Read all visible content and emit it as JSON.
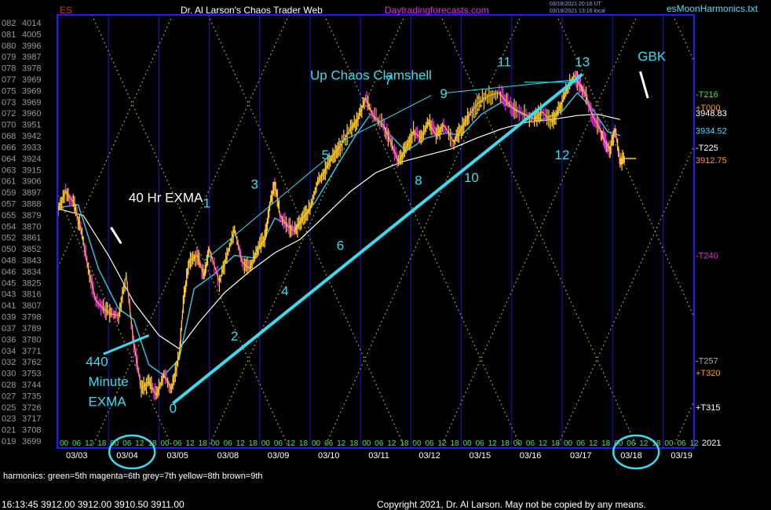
{
  "header": {
    "symbol": "ES",
    "title": "Dr. Al Larson's Chaos Trader Web",
    "site": "Daytradingforecasts.com",
    "ut_stamp": "03/18/2021 20:16 UT",
    "local_stamp": "03/18/2021 13:16 local",
    "filename": "esMoonHarmonics.txt"
  },
  "footer": {
    "harmonics_note": "harmonics: green=5th  magenta=6th grey=7th yellow=8th brown=9th",
    "quote_line": "16:13:45  3912.00 3912.00 3910.50 3911.00",
    "copyright": "Copyright 2021, Dr. Al Larson. May not be copied by any means."
  },
  "colors": {
    "background": "#000000",
    "frame": "#1e1ef0",
    "grid_blue": "#1717c8",
    "harmonic_dots": "#c8c828",
    "price_bars": "#ffc828",
    "low_bars": "#e628e6",
    "fast_ema": "#32c8e6",
    "slow_ema": "#ffffe6",
    "annotation": "#3cdcf0",
    "white": "#ffffff",
    "left_axis": "#9a9a9a",
    "header_red": "#dc2828",
    "header_magenta": "#e628e6",
    "header_cyan": "#50dcff"
  },
  "chart_data": {
    "type": "line",
    "symbol": "ES",
    "y_axis": {
      "ylim": [
        3699,
        4014
      ],
      "tick_labels": [
        {
          "prefix": "082",
          "value": "4014"
        },
        {
          "prefix": "081",
          "value": "4005"
        },
        {
          "prefix": "080",
          "value": "3996"
        },
        {
          "prefix": "079",
          "value": "3987"
        },
        {
          "prefix": "078",
          "value": "3978"
        },
        {
          "prefix": "077",
          "value": "3969"
        },
        {
          "prefix": "075",
          "value": "3969"
        },
        {
          "prefix": "073",
          "value": "3969"
        },
        {
          "prefix": "072",
          "value": "3960"
        },
        {
          "prefix": "070",
          "value": "3951"
        },
        {
          "prefix": "068",
          "value": "3942"
        },
        {
          "prefix": "066",
          "value": "3933"
        },
        {
          "prefix": "064",
          "value": "3924"
        },
        {
          "prefix": "063",
          "value": "3915"
        },
        {
          "prefix": "061",
          "value": "3906"
        },
        {
          "prefix": "059",
          "value": "3897"
        },
        {
          "prefix": "057",
          "value": "3888"
        },
        {
          "prefix": "055",
          "value": "3879"
        },
        {
          "prefix": "054",
          "value": "3870"
        },
        {
          "prefix": "052",
          "value": "3861"
        },
        {
          "prefix": "050",
          "value": "3852"
        },
        {
          "prefix": "048",
          "value": "3843"
        },
        {
          "prefix": "046",
          "value": "3834"
        },
        {
          "prefix": "045",
          "value": "3825"
        },
        {
          "prefix": "043",
          "value": "3816"
        },
        {
          "prefix": "041",
          "value": "3807"
        },
        {
          "prefix": "039",
          "value": "3798"
        },
        {
          "prefix": "037",
          "value": "3789"
        },
        {
          "prefix": "036",
          "value": "3780"
        },
        {
          "prefix": "034",
          "value": "3771"
        },
        {
          "prefix": "032",
          "value": "3762"
        },
        {
          "prefix": "030",
          "value": "3753"
        },
        {
          "prefix": "028",
          "value": "3744"
        },
        {
          "prefix": "027",
          "value": "3735"
        },
        {
          "prefix": "025",
          "value": "3726"
        },
        {
          "prefix": "023",
          "value": "3717"
        },
        {
          "prefix": "021",
          "value": "3708"
        },
        {
          "prefix": "019",
          "value": "3699"
        }
      ]
    },
    "x_axis": {
      "days": [
        "03/03",
        "03/04",
        "03/05",
        "03/08",
        "03/09",
        "03/10",
        "03/11",
        "03/12",
        "03/15",
        "03/16",
        "03/17",
        "03/18",
        "03/19"
      ],
      "hour_labels": [
        "00",
        "06",
        "12",
        "18"
      ],
      "year_label": "2021",
      "circled_days": [
        "03/04",
        "03/18"
      ]
    },
    "price_path": [
      [
        0.0,
        3875
      ],
      [
        0.15,
        3888
      ],
      [
        0.3,
        3880
      ],
      [
        0.45,
        3860
      ],
      [
        0.6,
        3830
      ],
      [
        0.75,
        3806
      ],
      [
        0.9,
        3800
      ],
      [
        1.05,
        3796
      ],
      [
        1.2,
        3795
      ],
      [
        1.35,
        3825
      ],
      [
        1.5,
        3775
      ],
      [
        1.65,
        3740
      ],
      [
        1.8,
        3745
      ],
      [
        1.95,
        3735
      ],
      [
        2.1,
        3750
      ],
      [
        2.25,
        3740
      ],
      [
        2.4,
        3765
      ],
      [
        2.5,
        3810
      ],
      [
        2.6,
        3835
      ],
      [
        2.75,
        3840
      ],
      [
        2.9,
        3825
      ],
      [
        3.0,
        3845
      ],
      [
        3.2,
        3820
      ],
      [
        3.35,
        3840
      ],
      [
        3.5,
        3860
      ],
      [
        3.65,
        3835
      ],
      [
        3.8,
        3830
      ],
      [
        3.95,
        3845
      ],
      [
        4.1,
        3852
      ],
      [
        4.2,
        3878
      ],
      [
        4.3,
        3895
      ],
      [
        4.4,
        3870
      ],
      [
        4.55,
        3862
      ],
      [
        4.7,
        3858
      ],
      [
        4.85,
        3868
      ],
      [
        5.0,
        3875
      ],
      [
        5.15,
        3895
      ],
      [
        5.3,
        3904
      ],
      [
        5.45,
        3915
      ],
      [
        5.6,
        3922
      ],
      [
        5.8,
        3935
      ],
      [
        5.95,
        3942
      ],
      [
        6.1,
        3958
      ],
      [
        6.25,
        3945
      ],
      [
        6.45,
        3938
      ],
      [
        6.6,
        3925
      ],
      [
        6.75,
        3910
      ],
      [
        6.9,
        3920
      ],
      [
        7.05,
        3933
      ],
      [
        7.2,
        3928
      ],
      [
        7.35,
        3940
      ],
      [
        7.5,
        3930
      ],
      [
        7.65,
        3938
      ],
      [
        7.85,
        3925
      ],
      [
        8.0,
        3935
      ],
      [
        8.15,
        3945
      ],
      [
        8.35,
        3955
      ],
      [
        8.55,
        3960
      ],
      [
        8.75,
        3962
      ],
      [
        8.9,
        3955
      ],
      [
        9.05,
        3950
      ],
      [
        9.25,
        3946
      ],
      [
        9.45,
        3942
      ],
      [
        9.6,
        3948
      ],
      [
        9.8,
        3940
      ],
      [
        9.95,
        3950
      ],
      [
        10.1,
        3965
      ],
      [
        10.25,
        3975
      ],
      [
        10.35,
        3968
      ],
      [
        10.45,
        3962
      ],
      [
        10.6,
        3945
      ],
      [
        10.75,
        3935
      ],
      [
        10.85,
        3925
      ],
      [
        10.95,
        3920
      ],
      [
        11.05,
        3935
      ],
      [
        11.15,
        3910
      ],
      [
        11.25,
        3912.75
      ]
    ],
    "fast_ema_path": [
      [
        0.0,
        3876
      ],
      [
        0.4,
        3878
      ],
      [
        0.8,
        3830
      ],
      [
        1.2,
        3800
      ],
      [
        1.5,
        3792
      ],
      [
        1.8,
        3758
      ],
      [
        2.1,
        3750
      ],
      [
        2.4,
        3762
      ],
      [
        2.7,
        3815
      ],
      [
        3.1,
        3826
      ],
      [
        3.5,
        3840
      ],
      [
        3.9,
        3838
      ],
      [
        4.3,
        3868
      ],
      [
        4.7,
        3860
      ],
      [
        5.1,
        3880
      ],
      [
        5.5,
        3905
      ],
      [
        5.9,
        3930
      ],
      [
        6.2,
        3946
      ],
      [
        6.6,
        3930
      ],
      [
        6.9,
        3918
      ],
      [
        7.3,
        3928
      ],
      [
        7.7,
        3932
      ],
      [
        8.0,
        3930
      ],
      [
        8.4,
        3946
      ],
      [
        8.8,
        3955
      ],
      [
        9.2,
        3946
      ],
      [
        9.6,
        3942
      ],
      [
        10.0,
        3948
      ],
      [
        10.3,
        3962
      ],
      [
        10.6,
        3950
      ],
      [
        10.9,
        3933
      ],
      [
        11.15,
        3930
      ]
    ],
    "slow_ema_path": [
      [
        0.0,
        3875
      ],
      [
        0.5,
        3870
      ],
      [
        1.0,
        3840
      ],
      [
        1.5,
        3805
      ],
      [
        2.0,
        3780
      ],
      [
        2.4,
        3770
      ],
      [
        2.8,
        3790
      ],
      [
        3.3,
        3812
      ],
      [
        3.8,
        3828
      ],
      [
        4.3,
        3842
      ],
      [
        4.8,
        3852
      ],
      [
        5.3,
        3870
      ],
      [
        5.8,
        3888
      ],
      [
        6.3,
        3902
      ],
      [
        6.8,
        3910
      ],
      [
        7.3,
        3915
      ],
      [
        7.8,
        3920
      ],
      [
        8.3,
        3928
      ],
      [
        8.8,
        3935
      ],
      [
        9.3,
        3940
      ],
      [
        9.8,
        3942
      ],
      [
        10.3,
        3945
      ],
      [
        10.7,
        3946
      ],
      [
        11.15,
        3942
      ]
    ],
    "wave_labels": [
      {
        "label": "0",
        "t": 2.28,
        "p": 3722
      },
      {
        "label": "1",
        "t": 2.95,
        "p": 3876
      },
      {
        "label": "2",
        "t": 3.5,
        "p": 3776
      },
      {
        "label": "3",
        "t": 3.9,
        "p": 3890
      },
      {
        "label": "4",
        "t": 4.5,
        "p": 3810
      },
      {
        "label": "5",
        "t": 5.3,
        "p": 3912
      },
      {
        "label": "6",
        "t": 5.6,
        "p": 3844
      },
      {
        "label": "7",
        "t": 6.55,
        "p": 3968
      },
      {
        "label": "8",
        "t": 7.15,
        "p": 3893
      },
      {
        "label": "9",
        "t": 7.65,
        "p": 3958
      },
      {
        "label": "10",
        "t": 8.2,
        "p": 3895
      },
      {
        "label": "11",
        "t": 8.85,
        "p": 3982
      },
      {
        "label": "12",
        "t": 10.0,
        "p": 3912
      },
      {
        "label": "13",
        "t": 10.4,
        "p": 3982
      }
    ],
    "annotations": [
      {
        "text": "Up Chaos Clamshell",
        "t": 5.0,
        "p": 3972
      },
      {
        "text": "40 Hr EXMA",
        "t": 1.4,
        "p": 3880
      },
      {
        "text": "440",
        "t": 0.55,
        "p": 3757
      },
      {
        "text": "Minute",
        "t": 0.6,
        "p": 3742
      },
      {
        "text": "EXMA",
        "t": 0.6,
        "p": 3727
      },
      {
        "text": "GBK",
        "t": 11.5,
        "p": 3986
      }
    ],
    "right_levels": [
      {
        "text": "-T216",
        "p": 3961,
        "color": "#3ce65a"
      },
      {
        "text": "+T000",
        "p": 3951,
        "color": "#ff9628"
      },
      {
        "text": "3948.83",
        "p": 3947,
        "color": "#ffffff"
      },
      {
        "text": "3934.52",
        "p": 3933.5,
        "color": "#50dcff"
      },
      {
        "text": "-T225",
        "p": 3921,
        "color": "#ffffff"
      },
      {
        "text": "3912.75",
        "p": 3911.5,
        "color": "#ff9628"
      },
      {
        "text": "-T240",
        "p": 3840,
        "color": "#e628e6"
      },
      {
        "text": "-T257",
        "p": 3761,
        "color": "#aaaaaa"
      },
      {
        "text": "+T320",
        "p": 3752,
        "color": "#ff9628"
      },
      {
        "text": "+T315",
        "p": 3726,
        "color": "#ffffff"
      }
    ],
    "trendline": {
      "from": [
        2.28,
        3729
      ],
      "to": [
        10.4,
        3976
      ]
    },
    "clamshell_lines": [
      {
        "from": [
          2.9,
          3836
        ],
        "to": [
          5.4,
          3915
        ]
      },
      {
        "from": [
          5.6,
          3925
        ],
        "to": [
          7.4,
          3960
        ]
      },
      {
        "from": [
          7.7,
          3962
        ],
        "to": [
          10.3,
          3972
        ]
      },
      {
        "from": [
          9.25,
          3970
        ],
        "to": [
          10.3,
          3970
        ]
      }
    ],
    "last_price": 3912.75,
    "last_price_t": 11.25
  }
}
